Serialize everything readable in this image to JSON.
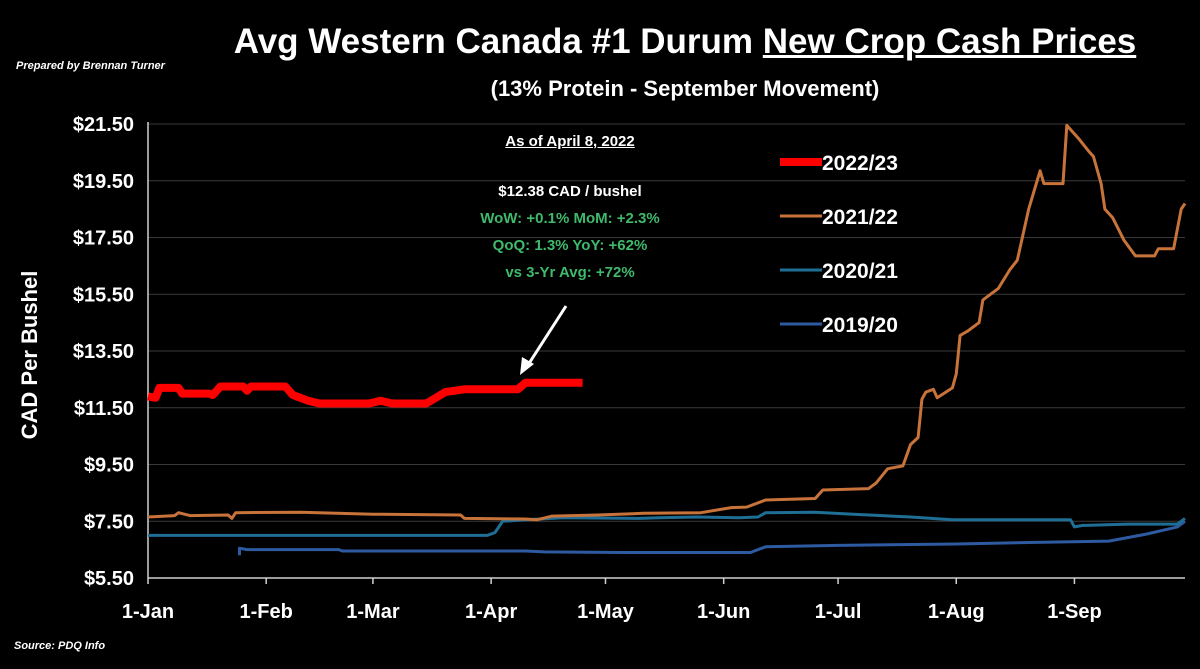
{
  "header": {
    "prepared_by": "Prepared by Brennan Turner",
    "title_plain": "Avg Western Canada #1 Durum ",
    "title_underlined": "New Crop Cash Prices",
    "subtitle": "(13% Protein - September Movement)",
    "source": "Source: PDQ Info"
  },
  "annotation": {
    "as_of": "As of April 8, 2022",
    "price": "$12.38 CAD / bushel",
    "wow_mom": "WoW: +0.1%   MoM: +2.3%",
    "qoq_yoy": "QoQ: 1.3%          YoY: +62%",
    "vs_avg": "vs 3-Yr Avg: +72%",
    "green_color": "#3fb96b"
  },
  "chart_data": {
    "type": "line",
    "ylabel": "CAD Per Bushel",
    "ylim": [
      5.5,
      21.5
    ],
    "yticks": [
      5.5,
      7.5,
      9.5,
      11.5,
      13.5,
      15.5,
      17.5,
      19.5,
      21.5
    ],
    "ytick_labels": [
      "$5.50",
      "$7.50",
      "$9.50",
      "$11.50",
      "$13.50",
      "$15.50",
      "$17.50",
      "$19.50",
      "$21.50"
    ],
    "xlim": [
      "2022-01-01",
      "2022-09-30"
    ],
    "xticks": [
      "2022-01-01",
      "2022-02-01",
      "2022-03-01",
      "2022-04-01",
      "2022-05-01",
      "2022-06-01",
      "2022-07-01",
      "2022-08-01",
      "2022-09-01"
    ],
    "xtick_labels": [
      "1-Jan",
      "1-Feb",
      "1-Mar",
      "1-Apr",
      "1-May",
      "1-Jun",
      "1-Jul",
      "1-Aug",
      "1-Sep"
    ],
    "grid": "horizontal",
    "legend_position": "top-right",
    "series": [
      {
        "name": "2022/23",
        "color": "#ff0000",
        "points": [
          [
            "2022-01-01",
            11.9
          ],
          [
            "2022-01-03",
            11.85
          ],
          [
            "2022-01-04",
            12.2
          ],
          [
            "2022-01-09",
            12.2
          ],
          [
            "2022-01-10",
            12.0
          ],
          [
            "2022-01-17",
            12.0
          ],
          [
            "2022-01-18",
            11.95
          ],
          [
            "2022-01-20",
            12.25
          ],
          [
            "2022-01-26",
            12.25
          ],
          [
            "2022-01-27",
            12.1
          ],
          [
            "2022-01-28",
            12.25
          ],
          [
            "2022-02-06",
            12.25
          ],
          [
            "2022-02-08",
            11.95
          ],
          [
            "2022-02-12",
            11.75
          ],
          [
            "2022-02-15",
            11.65
          ],
          [
            "2022-02-28",
            11.65
          ],
          [
            "2022-03-03",
            11.75
          ],
          [
            "2022-03-06",
            11.65
          ],
          [
            "2022-03-15",
            11.65
          ],
          [
            "2022-03-20",
            12.05
          ],
          [
            "2022-03-25",
            12.15
          ],
          [
            "2022-04-08",
            12.15
          ],
          [
            "2022-04-10",
            12.38
          ],
          [
            "2022-04-25",
            12.38
          ]
        ]
      },
      {
        "name": "2021/22",
        "color": "#c8733a",
        "points": [
          [
            "2022-01-01",
            7.65
          ],
          [
            "2022-01-08",
            7.7
          ],
          [
            "2022-01-09",
            7.8
          ],
          [
            "2022-01-12",
            7.7
          ],
          [
            "2022-01-22",
            7.72
          ],
          [
            "2022-01-23",
            7.6
          ],
          [
            "2022-01-24",
            7.8
          ],
          [
            "2022-02-10",
            7.82
          ],
          [
            "2022-03-01",
            7.75
          ],
          [
            "2022-03-24",
            7.72
          ],
          [
            "2022-03-25",
            7.6
          ],
          [
            "2022-04-10",
            7.58
          ],
          [
            "2022-04-13",
            7.55
          ],
          [
            "2022-04-17",
            7.68
          ],
          [
            "2022-04-29",
            7.72
          ],
          [
            "2022-05-11",
            7.78
          ],
          [
            "2022-05-26",
            7.8
          ],
          [
            "2022-06-03",
            7.98
          ],
          [
            "2022-06-07",
            8.0
          ],
          [
            "2022-06-12",
            8.25
          ],
          [
            "2022-06-25",
            8.3
          ],
          [
            "2022-06-27",
            8.6
          ],
          [
            "2022-07-09",
            8.65
          ],
          [
            "2022-07-11",
            8.85
          ],
          [
            "2022-07-14",
            9.35
          ],
          [
            "2022-07-18",
            9.45
          ],
          [
            "2022-07-20",
            10.2
          ],
          [
            "2022-07-22",
            10.45
          ],
          [
            "2022-07-23",
            11.8
          ],
          [
            "2022-07-24",
            12.05
          ],
          [
            "2022-07-26",
            12.15
          ],
          [
            "2022-07-27",
            11.85
          ],
          [
            "2022-07-31",
            12.2
          ],
          [
            "2022-08-01",
            12.7
          ],
          [
            "2022-08-02",
            14.05
          ],
          [
            "2022-08-04",
            14.2
          ],
          [
            "2022-08-07",
            14.5
          ],
          [
            "2022-08-08",
            15.3
          ],
          [
            "2022-08-12",
            15.7
          ],
          [
            "2022-08-15",
            16.35
          ],
          [
            "2022-08-17",
            16.7
          ],
          [
            "2022-08-20",
            18.5
          ],
          [
            "2022-08-23",
            19.85
          ],
          [
            "2022-08-24",
            19.4
          ],
          [
            "2022-08-29",
            19.4
          ],
          [
            "2022-08-30",
            21.45
          ],
          [
            "2022-09-02",
            21.0
          ],
          [
            "2022-09-05",
            20.5
          ],
          [
            "2022-09-06",
            20.35
          ],
          [
            "2022-09-08",
            19.4
          ],
          [
            "2022-09-09",
            18.5
          ],
          [
            "2022-09-11",
            18.2
          ],
          [
            "2022-09-14",
            17.4
          ],
          [
            "2022-09-17",
            16.85
          ],
          [
            "2022-09-22",
            16.85
          ],
          [
            "2022-09-23",
            17.1
          ],
          [
            "2022-09-27",
            17.1
          ],
          [
            "2022-09-29",
            18.5
          ],
          [
            "2022-09-30",
            18.7
          ]
        ]
      },
      {
        "name": "2020/21",
        "color": "#1f6e95",
        "points": [
          [
            "2022-01-01",
            7.0
          ],
          [
            "2022-03-31",
            7.0
          ],
          [
            "2022-04-02",
            7.1
          ],
          [
            "2022-04-04",
            7.5
          ],
          [
            "2022-04-10",
            7.55
          ],
          [
            "2022-04-20",
            7.62
          ],
          [
            "2022-05-10",
            7.6
          ],
          [
            "2022-05-15",
            7.62
          ],
          [
            "2022-05-25",
            7.65
          ],
          [
            "2022-06-05",
            7.62
          ],
          [
            "2022-06-10",
            7.65
          ],
          [
            "2022-06-12",
            7.8
          ],
          [
            "2022-06-25",
            7.82
          ],
          [
            "2022-07-05",
            7.75
          ],
          [
            "2022-07-20",
            7.65
          ],
          [
            "2022-07-31",
            7.55
          ],
          [
            "2022-08-31",
            7.55
          ],
          [
            "2022-09-01",
            7.3
          ],
          [
            "2022-09-03",
            7.35
          ],
          [
            "2022-09-15",
            7.4
          ],
          [
            "2022-09-28",
            7.4
          ],
          [
            "2022-09-30",
            7.6
          ]
        ]
      },
      {
        "name": "2019/20",
        "color": "#2d5aa0",
        "points": [
          [
            "2022-01-25",
            6.3
          ],
          [
            "2022-01-25",
            6.55
          ],
          [
            "2022-01-27",
            6.5
          ],
          [
            "2022-02-20",
            6.5
          ],
          [
            "2022-02-21",
            6.45
          ],
          [
            "2022-04-10",
            6.45
          ],
          [
            "2022-04-15",
            6.42
          ],
          [
            "2022-05-05",
            6.4
          ],
          [
            "2022-06-08",
            6.4
          ],
          [
            "2022-06-12",
            6.6
          ],
          [
            "2022-07-01",
            6.65
          ],
          [
            "2022-08-01",
            6.7
          ],
          [
            "2022-08-20",
            6.75
          ],
          [
            "2022-09-10",
            6.8
          ],
          [
            "2022-09-20",
            7.05
          ],
          [
            "2022-09-28",
            7.3
          ],
          [
            "2022-09-30",
            7.5
          ]
        ]
      }
    ]
  }
}
